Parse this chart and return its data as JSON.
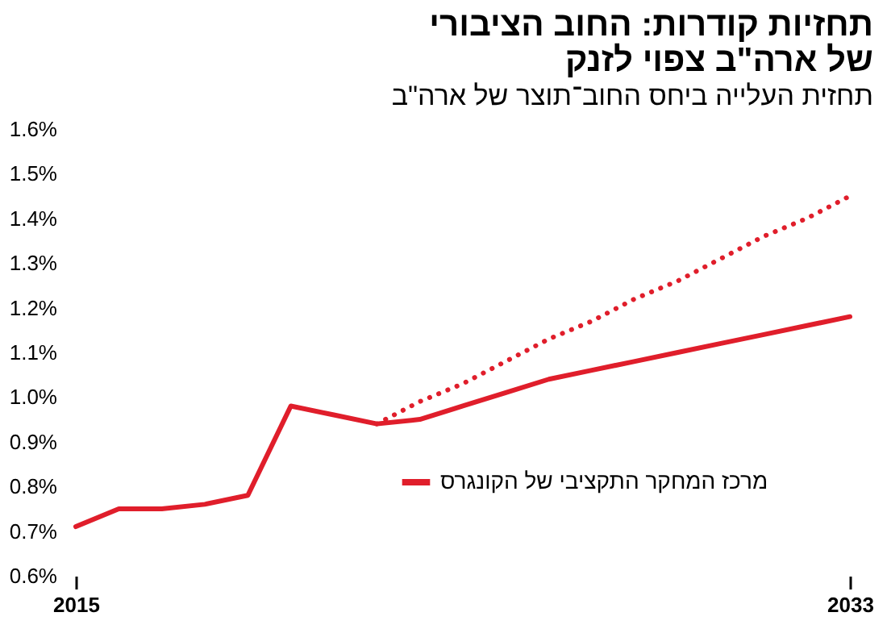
{
  "chart_data": {
    "type": "line",
    "title": "תחזיות קודרות: החוב הציבורי\nשל ארה\"ב צפוי לזנק",
    "subtitle": "תחזית העלייה ביחס החוב־תוצר של ארה\"ב",
    "x": [
      2015,
      2016,
      2017,
      2018,
      2019,
      2020,
      2021,
      2022,
      2023,
      2024,
      2025,
      2026,
      2027,
      2028,
      2029,
      2030,
      2031,
      2032,
      2033
    ],
    "series": [
      {
        "name": "מרכז המחקר התקציבי של הקונגרס",
        "color": "#e01e2b",
        "line_style": "solid",
        "values": [
          0.71,
          0.75,
          0.75,
          0.76,
          0.78,
          0.98,
          0.96,
          0.94,
          0.95,
          0.98,
          1.01,
          1.04,
          1.06,
          1.08,
          1.1,
          1.12,
          1.14,
          1.16,
          1.18
        ]
      },
      {
        "color": "#e01e2b",
        "line_style": "dotted",
        "x": [
          2022,
          2023,
          2024,
          2025,
          2026,
          2027,
          2028,
          2029,
          2030,
          2031,
          2032,
          2033
        ],
        "values": [
          0.94,
          0.99,
          1.03,
          1.08,
          1.13,
          1.17,
          1.22,
          1.26,
          1.31,
          1.36,
          1.4,
          1.45
        ]
      }
    ],
    "xlim": [
      2015,
      2033
    ],
    "xticks": [
      2015,
      2033
    ],
    "ylim": [
      0.6,
      1.6
    ],
    "yticks": [
      {
        "value": 0.6,
        "label": "0.6%"
      },
      {
        "value": 0.7,
        "label": "0.7%"
      },
      {
        "value": 0.8,
        "label": "0.8%"
      },
      {
        "value": 0.9,
        "label": "0.9%"
      },
      {
        "value": 1.0,
        "label": "1.0%"
      },
      {
        "value": 1.1,
        "label": "1.1%"
      },
      {
        "value": 1.2,
        "label": "1.2%"
      },
      {
        "value": 1.3,
        "label": "1.3%"
      },
      {
        "value": 1.4,
        "label": "1.4%"
      },
      {
        "value": 1.5,
        "label": "1.5%"
      },
      {
        "value": 1.6,
        "label": "1.6%"
      }
    ],
    "grid": false,
    "legend": "bottom right"
  }
}
